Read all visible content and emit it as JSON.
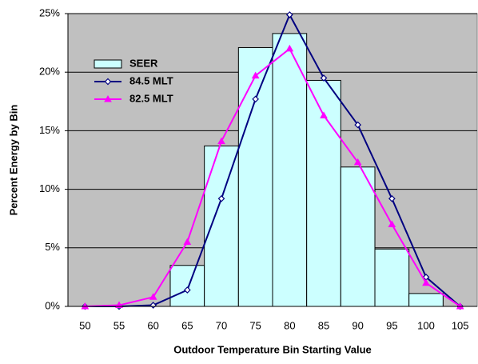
{
  "chart_data": {
    "type": "combo",
    "x_label": "Outdoor Temperature Bin Starting Value",
    "y_label": "Percent Energy by Bin",
    "categories": [
      "50",
      "55",
      "60",
      "65",
      "70",
      "75",
      "80",
      "85",
      "90",
      "95",
      "100",
      "105"
    ],
    "series": [
      {
        "name": "SEER",
        "type": "bar",
        "color": "#ccffff",
        "values": [
          0,
          0,
          0,
          3.5,
          13.7,
          22.1,
          23.3,
          19.3,
          11.9,
          4.9,
          1.1,
          0
        ]
      },
      {
        "name": "84.5 MLT",
        "type": "line",
        "marker": "diamond",
        "color": "#000080",
        "values": [
          0,
          0,
          0.1,
          1.4,
          9.2,
          17.7,
          24.9,
          19.5,
          15.5,
          9.2,
          2.5,
          0
        ]
      },
      {
        "name": "82.5 MLT",
        "type": "line",
        "marker": "triangle",
        "color": "#ff00ff",
        "values": [
          0,
          0.1,
          0.8,
          5.5,
          14.1,
          19.7,
          22.0,
          16.3,
          12.3,
          7.0,
          2.0,
          0
        ]
      }
    ],
    "ylim": [
      0,
      25
    ],
    "yticks": [
      {
        "value": 0,
        "label": "0%"
      },
      {
        "value": 5,
        "label": "5%"
      },
      {
        "value": 10,
        "label": "10%"
      },
      {
        "value": 15,
        "label": "15%"
      },
      {
        "value": 20,
        "label": "20%"
      },
      {
        "value": 25,
        "label": "25%"
      }
    ],
    "grid": true
  }
}
